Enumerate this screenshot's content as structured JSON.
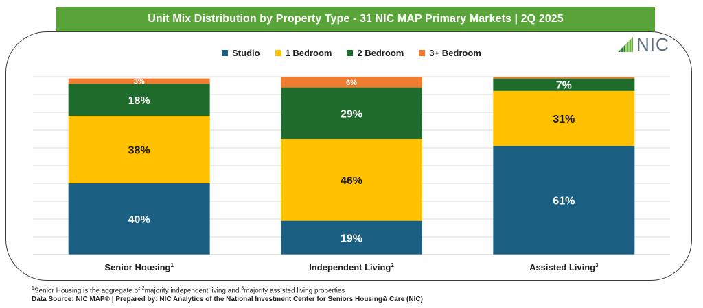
{
  "title": "Unit Mix Distribution by Property Type - 31 NIC MAP Primary Markets | 2Q 2025",
  "logo_text": "NIC",
  "footnote": {
    "sup1": "1",
    "part1": "Senior Housing is the aggregate of ",
    "sup2": "2",
    "part2": "majority independent living and ",
    "sup3": "3",
    "part3": "majority assisted living properties"
  },
  "source": "Data Source: NIC MAP® | Prepared by: NIC Analytics of the National Investment Center for Seniors Housing& Care (NIC)",
  "colors": {
    "Studio": "#1a5f82",
    "1 Bedroom": "#ffc000",
    "2 Bedroom": "#1e6b2c",
    "3+ Bedroom": "#ee7d31",
    "banner": "#5aa53a"
  },
  "chart_data": {
    "type": "bar",
    "stacked": true,
    "title": "Unit Mix Distribution by Property Type - 31 NIC MAP Primary Markets | 2Q 2025",
    "categories": [
      "Senior Housing",
      "Independent Living",
      "Assisted Living"
    ],
    "category_superscripts": [
      "1",
      "2",
      "3"
    ],
    "ylim": [
      0,
      100
    ],
    "grid": true,
    "legend": "top",
    "series": [
      {
        "name": "Studio",
        "values": [
          40,
          19,
          61
        ],
        "labels": [
          "40%",
          "19%",
          "61%"
        ]
      },
      {
        "name": "1 Bedroom",
        "values": [
          38,
          46,
          31
        ],
        "labels": [
          "38%",
          "46%",
          "31%"
        ]
      },
      {
        "name": "2 Bedroom",
        "values": [
          18,
          29,
          7
        ],
        "labels": [
          "18%",
          "29%",
          "7%"
        ]
      },
      {
        "name": "3+ Bedroom",
        "values": [
          3,
          6,
          1
        ],
        "labels": [
          "3%",
          "6%",
          ""
        ]
      }
    ]
  }
}
